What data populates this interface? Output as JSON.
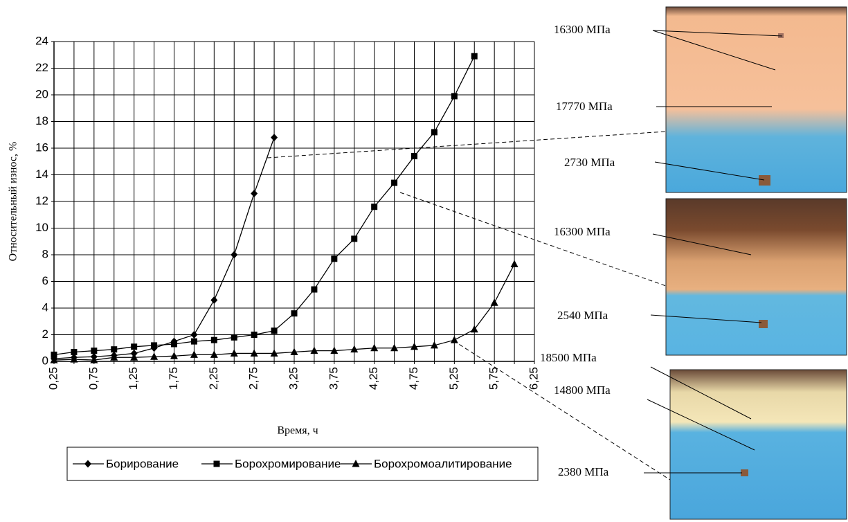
{
  "chart_data": {
    "type": "line",
    "y_label": "Относительный износ, %",
    "x_label": "Время, ч",
    "x": [
      0.25,
      0.5,
      0.75,
      1.0,
      1.25,
      1.5,
      1.75,
      2.0,
      2.25,
      2.5,
      2.75,
      3.0,
      3.25,
      3.5,
      3.75,
      4.0,
      4.25,
      4.5,
      4.75,
      5.0,
      5.25,
      5.5,
      5.75,
      6.0
    ],
    "series": [
      {
        "name": "Борирование",
        "color": "#000000",
        "marker": "diamond",
        "values": [
          0.2,
          0.3,
          0.35,
          0.45,
          0.6,
          1.0,
          1.5,
          2.0,
          4.6,
          8.0,
          12.6,
          16.8,
          null,
          null,
          null,
          null,
          null,
          null,
          null,
          null,
          null,
          null,
          null,
          null
        ]
      },
      {
        "name": "Борохромирование",
        "color": "#000000",
        "marker": "square",
        "values": [
          0.5,
          0.7,
          0.8,
          0.9,
          1.1,
          1.2,
          1.3,
          1.5,
          1.6,
          1.8,
          2.0,
          2.3,
          3.6,
          5.4,
          7.7,
          9.2,
          11.6,
          13.4,
          15.4,
          17.2,
          19.9,
          22.9,
          null,
          null
        ]
      },
      {
        "name": "Борохромоалитирование",
        "color": "#000000",
        "marker": "triangle",
        "values": [
          0.1,
          0.15,
          0.1,
          0.3,
          0.3,
          0.35,
          0.4,
          0.5,
          0.5,
          0.6,
          0.6,
          0.6,
          0.7,
          0.8,
          0.8,
          0.9,
          1.0,
          1.0,
          1.1,
          1.2,
          1.6,
          2.4,
          4.4,
          7.3
        ]
      }
    ],
    "xlim": [
      0.25,
      6.25
    ],
    "xticks": [
      {
        "value": 0.25,
        "label": "0,25"
      },
      {
        "value": 0.75,
        "label": "0,75"
      },
      {
        "value": 1.25,
        "label": "1,25"
      },
      {
        "value": 1.75,
        "label": "1,75"
      },
      {
        "value": 2.25,
        "label": "2,25"
      },
      {
        "value": 2.75,
        "label": "2,75"
      },
      {
        "value": 3.25,
        "label": "3,25"
      },
      {
        "value": 3.75,
        "label": "3,75"
      },
      {
        "value": 4.25,
        "label": "4,25"
      },
      {
        "value": 4.75,
        "label": "4,75"
      },
      {
        "value": 5.25,
        "label": "5,25"
      },
      {
        "value": 5.75,
        "label": "5,75"
      },
      {
        "value": 6.25,
        "label": "6,25"
      }
    ],
    "ylim": [
      0,
      24
    ],
    "yticks": [
      0,
      2,
      4,
      6,
      8,
      10,
      12,
      14,
      16,
      18,
      20,
      22,
      24
    ],
    "grid": true,
    "legend": "bottom",
    "annotations": [
      "16300 МПа",
      "17770 МПа",
      "2730 МПа",
      "16300 МПа",
      "2540 МПа",
      "18500 МПа",
      "14800 МПа",
      "2380 МПа"
    ]
  }
}
